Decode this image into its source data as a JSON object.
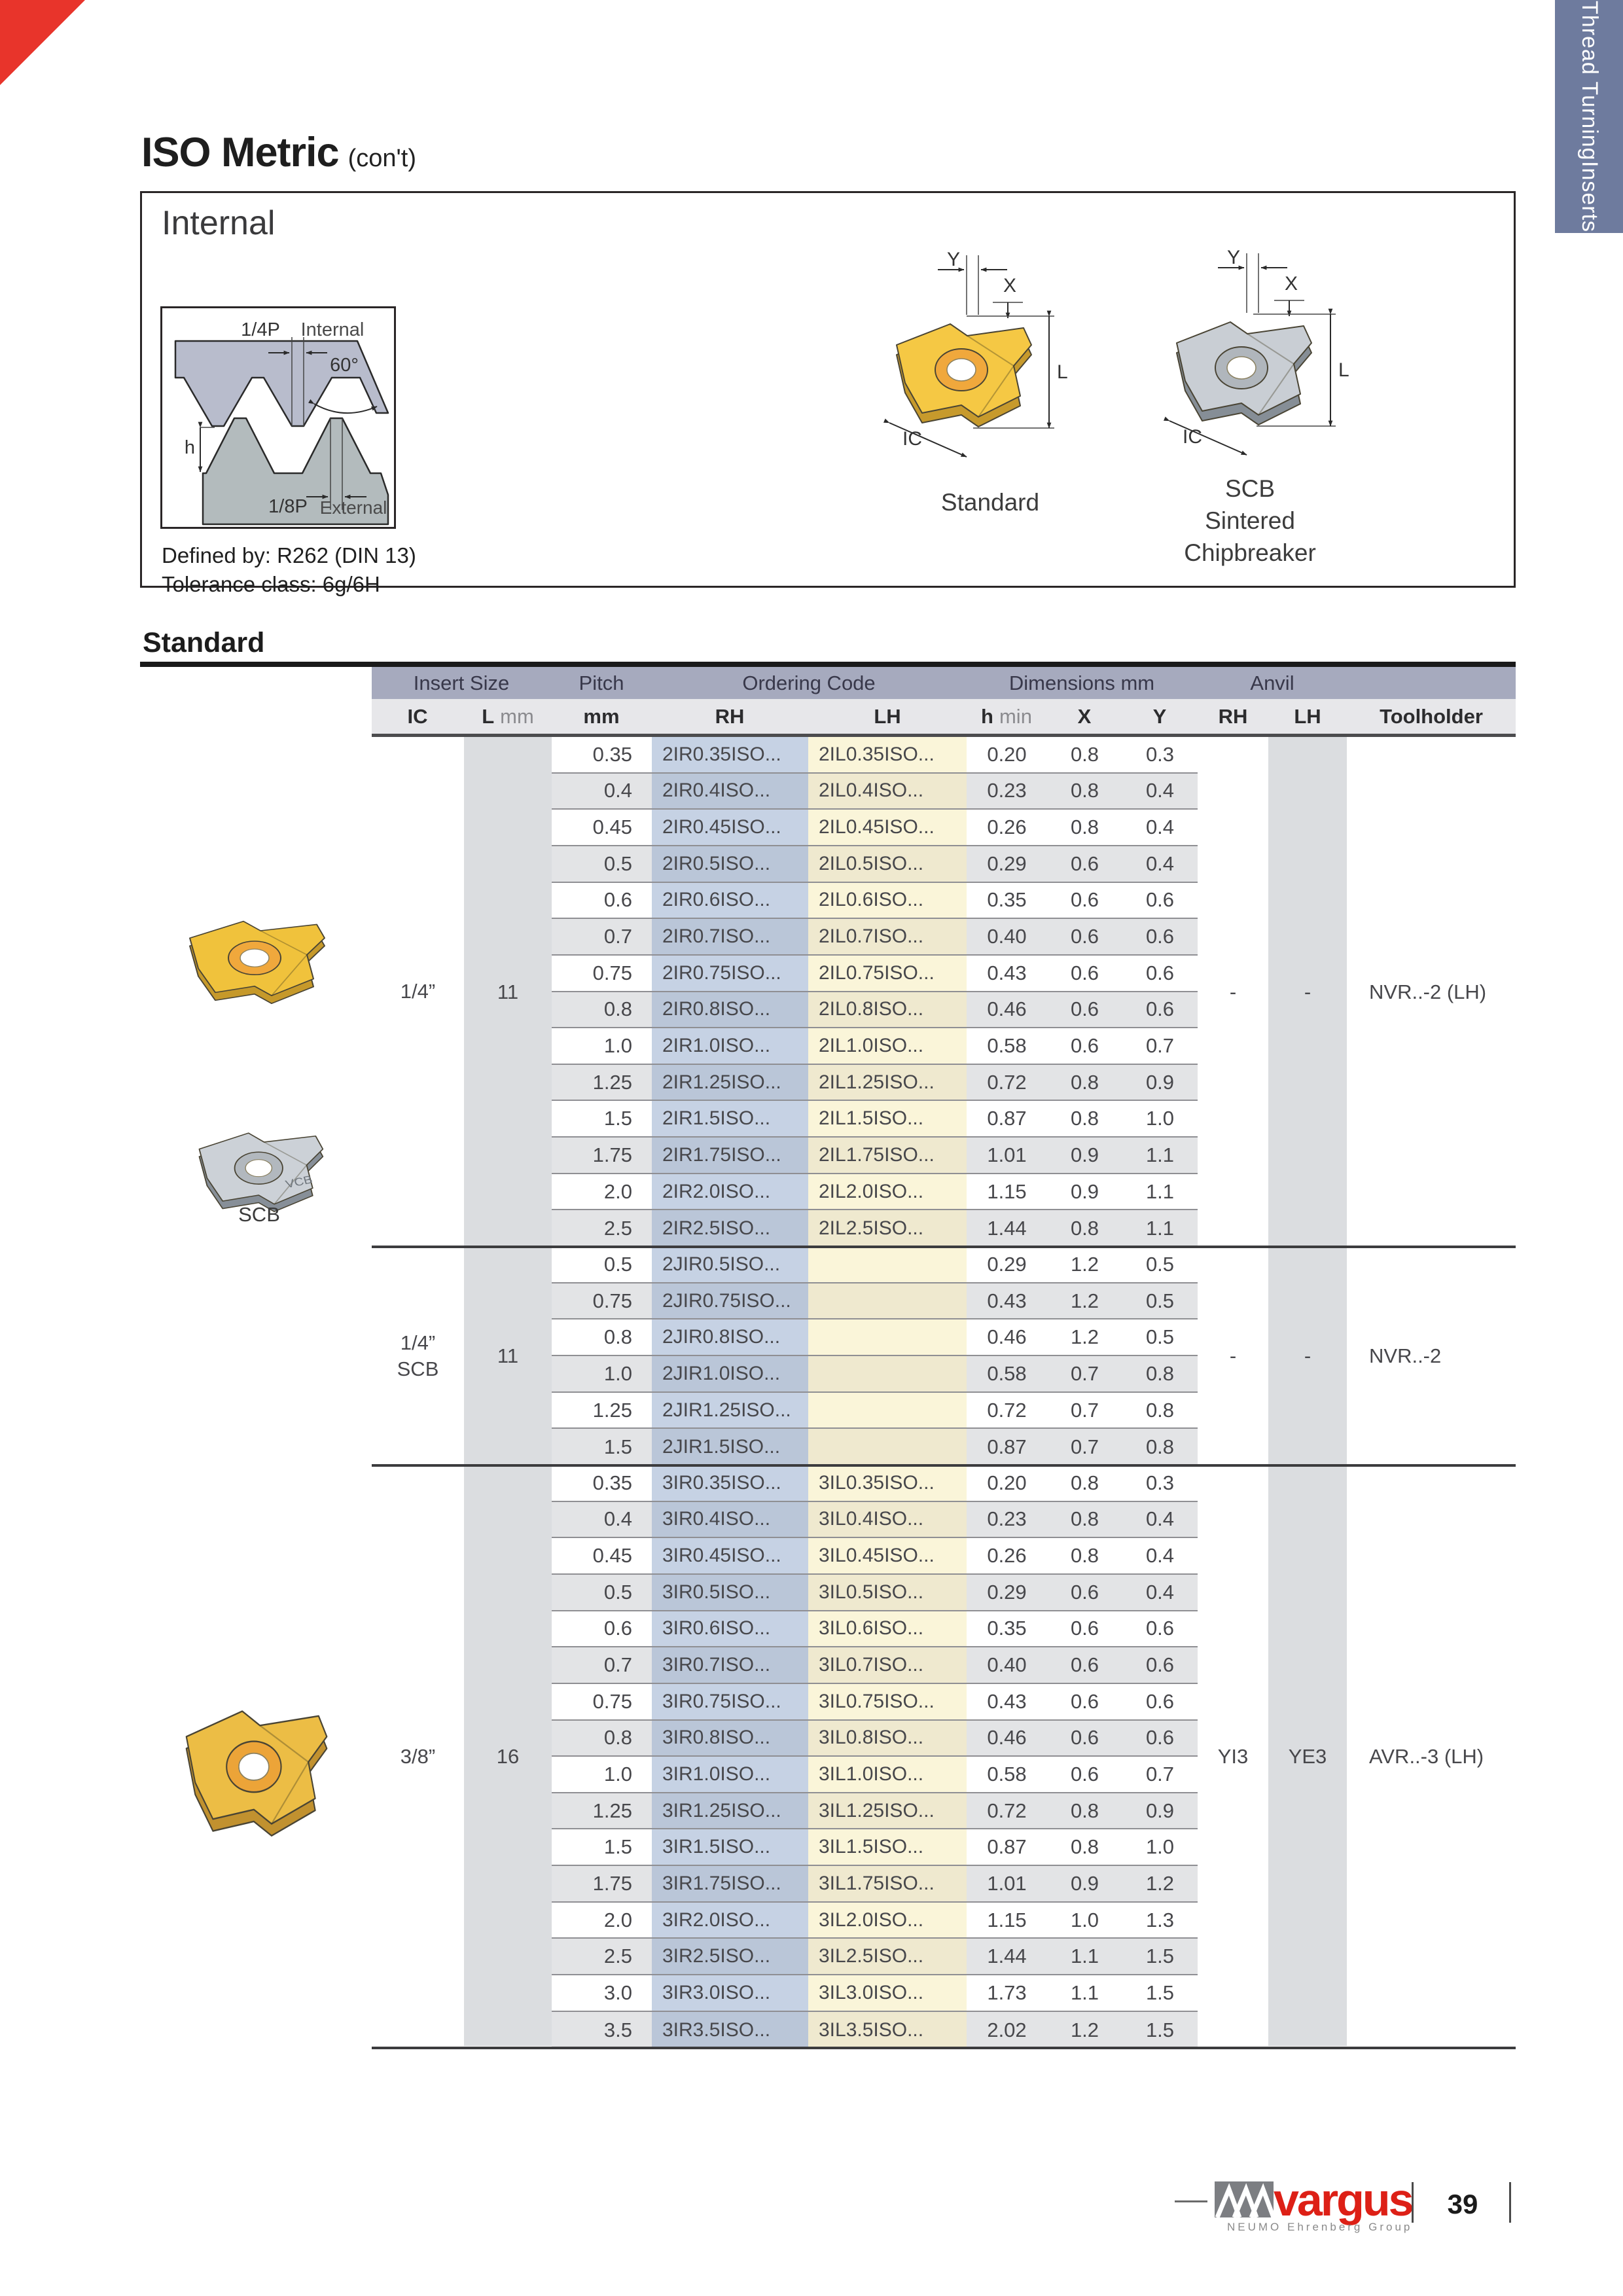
{
  "page": {
    "title": "ISO Metric",
    "title_suffix": "(con't)",
    "tab_lines": [
      "Thread Turning",
      "Inserts"
    ],
    "page_number": "39"
  },
  "internal": {
    "heading": "Internal",
    "defined_by": "Defined by: R262 (DIN 13)",
    "tolerance": "Tolerance class: 6g/6H",
    "profile": {
      "quarter_p": "1/4P",
      "internal": "Internal",
      "angle": "60°",
      "h": "h",
      "eighth_p": "1/8P",
      "external": "External"
    },
    "dims": {
      "y": "Y",
      "x": "X",
      "l": "L",
      "ic": "IC"
    },
    "standard_caption": "Standard",
    "scb_caption": [
      "SCB",
      "Sintered",
      "Chipbreaker"
    ],
    "scb_photo_label": "SCB"
  },
  "section": {
    "heading": "Standard"
  },
  "table": {
    "band": [
      "Insert Size",
      "Pitch",
      "Ordering Code",
      "Dimensions mm",
      "Anvil"
    ],
    "cols": {
      "ic": "IC",
      "l": "L",
      "l_unit": "mm",
      "pitch": "mm",
      "rh": "RH",
      "lh": "LH",
      "h": "h",
      "h_unit": "min",
      "x": "X",
      "y": "Y",
      "anvil_rh": "RH",
      "anvil_lh": "LH",
      "toolholder": "Toolholder"
    },
    "groups": [
      {
        "ic_lines": [
          "1/4”"
        ],
        "l": "11",
        "anvil_rh": "-",
        "anvil_lh": "-",
        "toolholder": "NVR..-2 (LH)",
        "rows": [
          [
            "0.35",
            "2IR0.35ISO...",
            "2IL0.35ISO...",
            "0.20",
            "0.8",
            "0.3"
          ],
          [
            "0.4",
            "2IR0.4ISO...",
            "2IL0.4ISO...",
            "0.23",
            "0.8",
            "0.4"
          ],
          [
            "0.45",
            "2IR0.45ISO...",
            "2IL0.45ISO...",
            "0.26",
            "0.8",
            "0.4"
          ],
          [
            "0.5",
            "2IR0.5ISO...",
            "2IL0.5ISO...",
            "0.29",
            "0.6",
            "0.4"
          ],
          [
            "0.6",
            "2IR0.6ISO...",
            "2IL0.6ISO...",
            "0.35",
            "0.6",
            "0.6"
          ],
          [
            "0.7",
            "2IR0.7ISO...",
            "2IL0.7ISO...",
            "0.40",
            "0.6",
            "0.6"
          ],
          [
            "0.75",
            "2IR0.75ISO...",
            "2IL0.75ISO...",
            "0.43",
            "0.6",
            "0.6"
          ],
          [
            "0.8",
            "2IR0.8ISO...",
            "2IL0.8ISO...",
            "0.46",
            "0.6",
            "0.6"
          ],
          [
            "1.0",
            "2IR1.0ISO...",
            "2IL1.0ISO...",
            "0.58",
            "0.6",
            "0.7"
          ],
          [
            "1.25",
            "2IR1.25ISO...",
            "2IL1.25ISO...",
            "0.72",
            "0.8",
            "0.9"
          ],
          [
            "1.5",
            "2IR1.5ISO...",
            "2IL1.5ISO...",
            "0.87",
            "0.8",
            "1.0"
          ],
          [
            "1.75",
            "2IR1.75ISO...",
            "2IL1.75ISO...",
            "1.01",
            "0.9",
            "1.1"
          ],
          [
            "2.0",
            "2IR2.0ISO...",
            "2IL2.0ISO...",
            "1.15",
            "0.9",
            "1.1"
          ],
          [
            "2.5",
            "2IR2.5ISO...",
            "2IL2.5ISO...",
            "1.44",
            "0.8",
            "1.1"
          ]
        ]
      },
      {
        "ic_lines": [
          "1/4”",
          "SCB"
        ],
        "l": "11",
        "anvil_rh": "-",
        "anvil_lh": "-",
        "toolholder": "NVR..-2",
        "rows": [
          [
            "0.5",
            "2JIR0.5ISO...",
            "",
            "0.29",
            "1.2",
            "0.5"
          ],
          [
            "0.75",
            "2JIR0.75ISO...",
            "",
            "0.43",
            "1.2",
            "0.5"
          ],
          [
            "0.8",
            "2JIR0.8ISO...",
            "",
            "0.46",
            "1.2",
            "0.5"
          ],
          [
            "1.0",
            "2JIR1.0ISO...",
            "",
            "0.58",
            "0.7",
            "0.8"
          ],
          [
            "1.25",
            "2JIR1.25ISO...",
            "",
            "0.72",
            "0.7",
            "0.8"
          ],
          [
            "1.5",
            "2JIR1.5ISO...",
            "",
            "0.87",
            "0.7",
            "0.8"
          ]
        ]
      },
      {
        "ic_lines": [
          "3/8”"
        ],
        "l": "16",
        "anvil_rh": "YI3",
        "anvil_lh": "YE3",
        "toolholder": "AVR..-3 (LH)",
        "rows": [
          [
            "0.35",
            "3IR0.35ISO...",
            "3IL0.35ISO...",
            "0.20",
            "0.8",
            "0.3"
          ],
          [
            "0.4",
            "3IR0.4ISO...",
            "3IL0.4ISO...",
            "0.23",
            "0.8",
            "0.4"
          ],
          [
            "0.45",
            "3IR0.45ISO...",
            "3IL0.45ISO...",
            "0.26",
            "0.8",
            "0.4"
          ],
          [
            "0.5",
            "3IR0.5ISO...",
            "3IL0.5ISO...",
            "0.29",
            "0.6",
            "0.4"
          ],
          [
            "0.6",
            "3IR0.6ISO...",
            "3IL0.6ISO...",
            "0.35",
            "0.6",
            "0.6"
          ],
          [
            "0.7",
            "3IR0.7ISO...",
            "3IL0.7ISO...",
            "0.40",
            "0.6",
            "0.6"
          ],
          [
            "0.75",
            "3IR0.75ISO...",
            "3IL0.75ISO...",
            "0.43",
            "0.6",
            "0.6"
          ],
          [
            "0.8",
            "3IR0.8ISO...",
            "3IL0.8ISO...",
            "0.46",
            "0.6",
            "0.6"
          ],
          [
            "1.0",
            "3IR1.0ISO...",
            "3IL1.0ISO...",
            "0.58",
            "0.6",
            "0.7"
          ],
          [
            "1.25",
            "3IR1.25ISO...",
            "3IL1.25ISO...",
            "0.72",
            "0.8",
            "0.9"
          ],
          [
            "1.5",
            "3IR1.5ISO...",
            "3IL1.5ISO...",
            "0.87",
            "0.8",
            "1.0"
          ],
          [
            "1.75",
            "3IR1.75ISO...",
            "3IL1.75ISO...",
            "1.01",
            "0.9",
            "1.2"
          ],
          [
            "2.0",
            "3IR2.0ISO...",
            "3IL2.0ISO...",
            "1.15",
            "1.0",
            "1.3"
          ],
          [
            "2.5",
            "3IR2.5ISO...",
            "3IL2.5ISO...",
            "1.44",
            "1.1",
            "1.5"
          ],
          [
            "3.0",
            "3IR3.0ISO...",
            "3IL3.0ISO...",
            "1.73",
            "1.1",
            "1.5"
          ],
          [
            "3.5",
            "3IR3.5ISO...",
            "3IL3.5ISO...",
            "2.02",
            "1.2",
            "1.5"
          ]
        ]
      }
    ]
  },
  "footer": {
    "brand": "vargus",
    "brand_sub": "NEUMO Ehrenberg Group",
    "page_number": "39"
  },
  "colors": {
    "accent_red": "#e8342b",
    "tab_blue": "#6e7b9e",
    "band_header": "#a6aabe",
    "subheader": "#e7e7ea",
    "column_band": "#dbdde0",
    "stripe": "#e3e4e6",
    "rh_tint": "#c6d2e4",
    "rh_tint_dark": "#bac6d8",
    "lh_tint": "#faf5d9",
    "lh_tint_dark": "#efe9cf",
    "insert_yellow": "#ecc257",
    "brand_red": "#dd2016"
  }
}
